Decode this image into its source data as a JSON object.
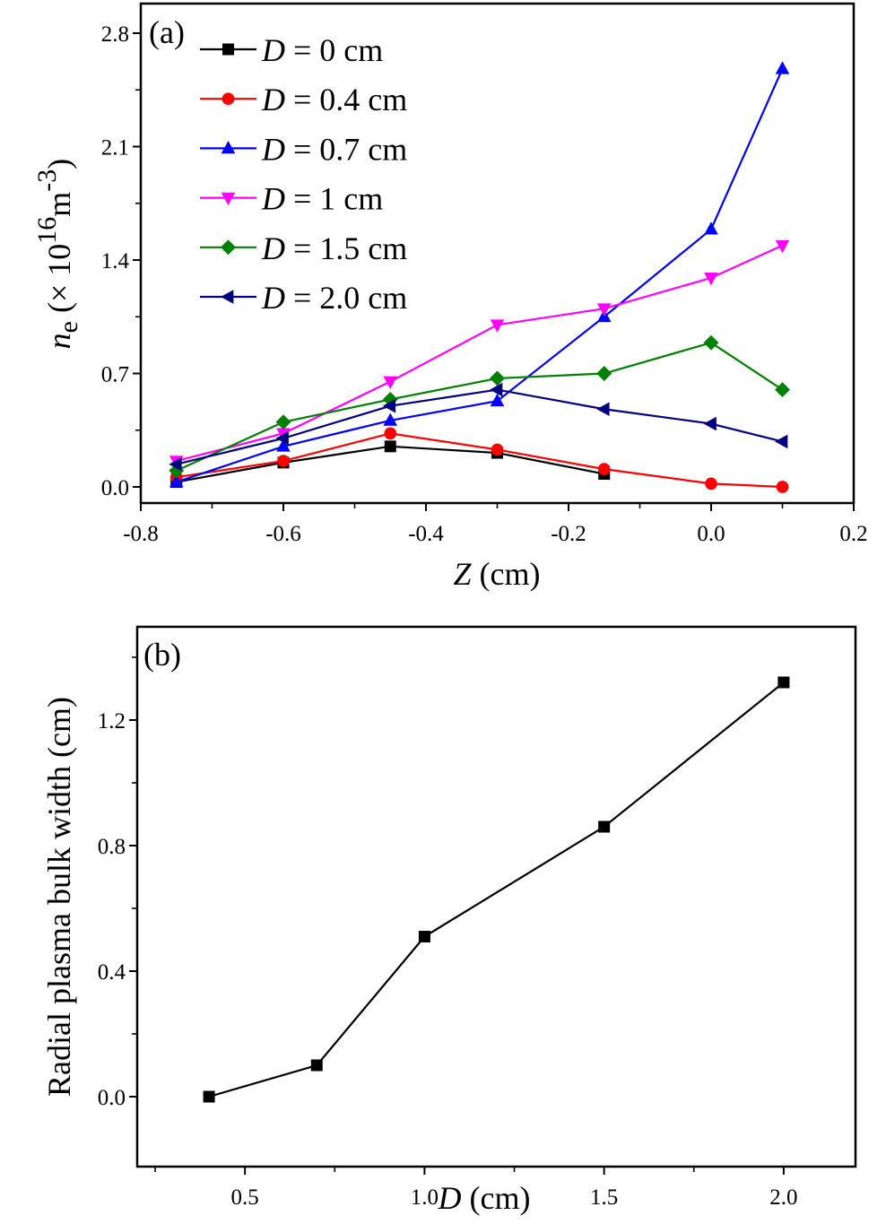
{
  "chart_data": [
    {
      "type": "line",
      "panel_label": "(a)",
      "title": "",
      "xlabel": "Z (cm)",
      "xlabel_parts": {
        "var": "Z",
        "unit": " (cm)"
      },
      "ylabel": "n_e (× 10^16 m^-3)",
      "ylabel_parts": {
        "var": "n",
        "sub": "e",
        "pre": " (× 10",
        "sup1": "16",
        "mid": "m",
        "sup2": "-3",
        "post": ")"
      },
      "xlim": [
        -0.8,
        0.2
      ],
      "ylim": [
        -0.1,
        2.82
      ],
      "xticks": [
        -0.8,
        -0.6,
        -0.4,
        -0.2,
        0.0,
        0.2
      ],
      "xtick_labels": [
        "-0.8",
        "-0.6",
        "-0.4",
        "-0.2",
        "0.0",
        "0.2"
      ],
      "yticks": [
        0.0,
        0.7,
        1.4,
        2.1,
        2.8
      ],
      "ytick_labels": [
        "0.0",
        "0.7",
        "1.4",
        "2.1",
        "2.8"
      ],
      "grid": false,
      "legend_position": "top-left",
      "x": [
        -0.75,
        -0.6,
        -0.45,
        -0.3,
        -0.15,
        0.0,
        0.1
      ],
      "series": [
        {
          "name": "D = 0 cm",
          "label_var": "D",
          "label_rest": " = 0 cm",
          "color": "#000000",
          "marker": "square",
          "x": [
            -0.75,
            -0.6,
            -0.45,
            -0.3,
            -0.15
          ],
          "values": [
            0.03,
            0.15,
            0.25,
            0.21,
            0.08
          ]
        },
        {
          "name": "D = 0.4 cm",
          "label_var": "D",
          "label_rest": " = 0.4 cm",
          "color": "#ff0000",
          "marker": "circle",
          "x": [
            -0.75,
            -0.6,
            -0.45,
            -0.3,
            -0.15,
            0.0,
            0.1
          ],
          "values": [
            0.06,
            0.16,
            0.33,
            0.23,
            0.11,
            0.02,
            0.0
          ]
        },
        {
          "name": "D = 0.7 cm",
          "label_var": "D",
          "label_rest": " = 0.7 cm",
          "color": "#0000ff",
          "marker": "triangle-up",
          "x": [
            -0.75,
            -0.6,
            -0.45,
            -0.3,
            -0.15,
            0.0,
            0.1
          ],
          "values": [
            0.03,
            0.25,
            0.41,
            0.53,
            1.05,
            1.59,
            2.58
          ]
        },
        {
          "name": "D = 1 cm",
          "label_var": "D",
          "label_rest": " = 1 cm",
          "color": "#ff00ff",
          "marker": "triangle-down",
          "x": [
            -0.75,
            -0.6,
            -0.45,
            -0.3,
            -0.15,
            0.0,
            0.1
          ],
          "values": [
            0.16,
            0.33,
            0.65,
            1.0,
            1.1,
            1.29,
            1.49
          ]
        },
        {
          "name": "D = 1.5 cm",
          "label_var": "D",
          "label_rest": " = 1.5 cm",
          "color": "#008000",
          "marker": "diamond",
          "x": [
            -0.75,
            -0.6,
            -0.45,
            -0.3,
            -0.15,
            0.0,
            0.1
          ],
          "values": [
            0.1,
            0.4,
            0.54,
            0.67,
            0.7,
            0.89,
            0.6
          ]
        },
        {
          "name": "D = 2.0 cm",
          "label_var": "D",
          "label_rest": " = 2.0 cm",
          "color": "#000080",
          "marker": "triangle-left",
          "x": [
            -0.75,
            -0.6,
            -0.45,
            -0.3,
            -0.15,
            0.0,
            0.1
          ],
          "values": [
            0.14,
            0.3,
            0.5,
            0.6,
            0.48,
            0.39,
            0.28
          ]
        }
      ]
    },
    {
      "type": "line",
      "panel_label": "(b)",
      "title": "",
      "xlabel": "D (cm)",
      "xlabel_parts": {
        "var": "D",
        "unit": " (cm)"
      },
      "ylabel": "Radial plasma bulk width (cm)",
      "xlim": [
        0.2,
        2.2
      ],
      "ylim": [
        -0.1,
        1.5
      ],
      "xticks": [
        0.5,
        1.0,
        1.5,
        2.0
      ],
      "xtick_labels": [
        "0.5",
        "1.0",
        "1.5",
        "2.0"
      ],
      "yticks": [
        0.0,
        0.4,
        0.8,
        1.2
      ],
      "ytick_labels": [
        "0.0",
        "0.4",
        "0.8",
        "1.2"
      ],
      "grid": false,
      "series": [
        {
          "name": "Radial plasma bulk width",
          "color": "#000000",
          "marker": "square",
          "x": [
            0.4,
            0.7,
            1.0,
            1.5,
            2.0
          ],
          "values": [
            0.0,
            0.1,
            0.51,
            0.86,
            1.32
          ]
        }
      ]
    }
  ]
}
